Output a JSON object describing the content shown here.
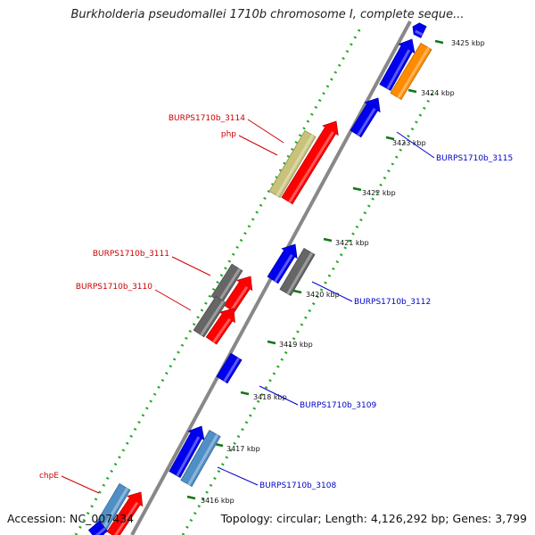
{
  "title": "Burkholderia pseudomallei 1710b chromosome I, complete seque...",
  "accession": "Accession: NC_007434",
  "topology": "Topology: circular; Length: 4,126,292 bp; Genes: 3,799",
  "kbp_labels": [
    "3425 kbp",
    "3424 kbp",
    "3423 kbp",
    "3422 kbp",
    "3421 kbp",
    "3420 kbp",
    "3419 kbp",
    "3418 kbp",
    "3417 kbp",
    "3416 kbp"
  ],
  "gene_labels_left": [
    "BURPS1710b_3114",
    "php",
    "BURPS1710b_3111",
    "BURPS1710b_3110",
    "chpE"
  ],
  "gene_labels_right": [
    "BURPS1710b_3115",
    "BURPS1710b_3112",
    "BURPS1710b_3109",
    "BURPS1710b_3108"
  ],
  "colors": {
    "forward": "#ff0000",
    "reverse": "#0000ee",
    "gray": "#666666",
    "orange": "#ff8c00",
    "khaki": "#c8c27a",
    "steelblue": "#4f8fc6",
    "label_left": "#cc0000",
    "label_right": "#0000cc",
    "dots": "#22aa22"
  }
}
